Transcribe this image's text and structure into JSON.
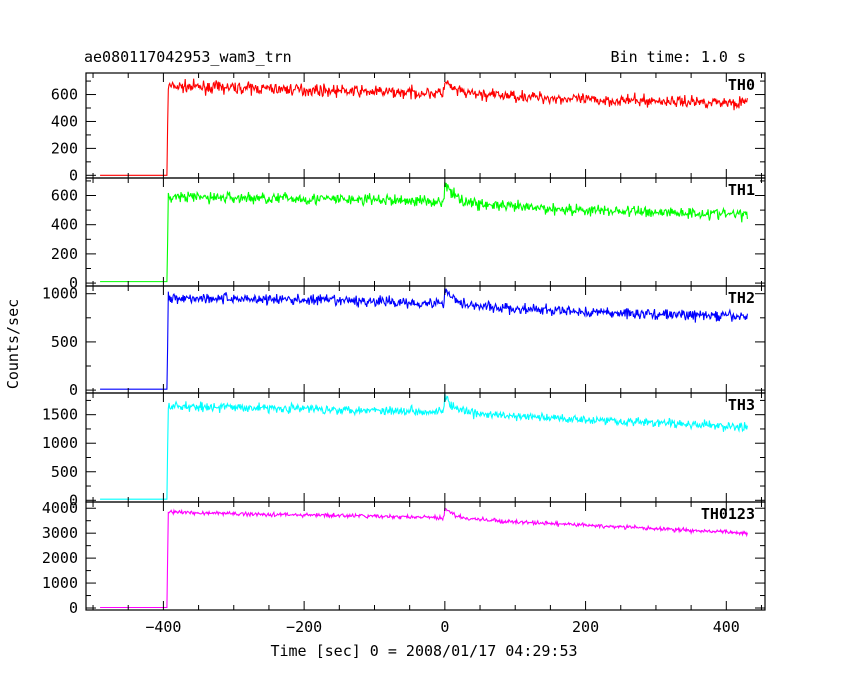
{
  "header": {
    "title": "ae080117042953_wam3_trn",
    "bin_time": "Bin time: 1.0 s"
  },
  "axes": {
    "ylabel": "Counts/sec",
    "xlabel": "Time [sec] 0 = 2008/01/17 04:29:53",
    "x_ticks": [
      "−400",
      "−200",
      "0",
      "200",
      "400"
    ]
  },
  "chart_data": {
    "type": "line",
    "title": "ae080117042953_wam3_trn",
    "xlabel": "Time [sec] 0 = 2008/01/17 04:29:53",
    "ylabel": "Counts/sec",
    "xlim": [
      -510,
      455
    ],
    "x_start": -490,
    "x_step": 1,
    "x_end": 430,
    "onset_time": -394,
    "burst_time": 0,
    "grid": false,
    "panels": [
      {
        "name": "TH0",
        "color": "#ff0000",
        "ylim": [
          -20,
          760
        ],
        "yticks": [
          0,
          200,
          400,
          600
        ],
        "ytick_labels": [
          "0",
          "200",
          "400",
          "600"
        ],
        "background": 0,
        "pre_onset_peak": 370,
        "trend": [
          [
            -394,
            660
          ],
          [
            -300,
            650
          ],
          [
            -100,
            620
          ],
          [
            -10,
            610
          ],
          [
            100,
            590
          ],
          [
            200,
            560
          ],
          [
            430,
            540
          ]
        ],
        "noise": 30,
        "burst_peak": 700,
        "burst_decay": 12
      },
      {
        "name": "TH1",
        "color": "#00ff00",
        "ylim": [
          -20,
          720
        ],
        "yticks": [
          0,
          200,
          400,
          600
        ],
        "ytick_labels": [
          "0",
          "200",
          "400",
          "600"
        ],
        "background": 10,
        "pre_onset_peak": 280,
        "trend": [
          [
            -394,
            590
          ],
          [
            -300,
            585
          ],
          [
            -100,
            570
          ],
          [
            -10,
            560
          ],
          [
            100,
            520
          ],
          [
            200,
            500
          ],
          [
            430,
            470
          ]
        ],
        "noise": 28,
        "burst_peak": 680,
        "burst_decay": 14
      },
      {
        "name": "TH2",
        "color": "#0000ff",
        "ylim": [
          -30,
          1080
        ],
        "yticks": [
          0,
          500,
          1000
        ],
        "ytick_labels": [
          "0",
          "500",
          "1000"
        ],
        "background": 10,
        "pre_onset_peak": 450,
        "trend": [
          [
            -394,
            960
          ],
          [
            -300,
            950
          ],
          [
            -100,
            920
          ],
          [
            -10,
            900
          ],
          [
            100,
            840
          ],
          [
            200,
            810
          ],
          [
            430,
            760
          ]
        ],
        "noise": 40,
        "burst_peak": 1050,
        "burst_decay": 14
      },
      {
        "name": "TH3",
        "color": "#00ffff",
        "ylim": [
          -30,
          1880
        ],
        "yticks": [
          0,
          500,
          1000,
          1500
        ],
        "ytick_labels": [
          "0",
          "500",
          "1000",
          "1500"
        ],
        "background": 20,
        "pre_onset_peak": 900,
        "trend": [
          [
            -394,
            1650
          ],
          [
            -300,
            1630
          ],
          [
            -100,
            1580
          ],
          [
            -10,
            1560
          ],
          [
            100,
            1470
          ],
          [
            200,
            1420
          ],
          [
            430,
            1280
          ]
        ],
        "noise": 55,
        "burst_peak": 1860,
        "burst_decay": 10
      },
      {
        "name": "TH0123",
        "color": "#ff00ff",
        "ylim": [
          -80,
          4250
        ],
        "yticks": [
          0,
          1000,
          2000,
          3000,
          4000
        ],
        "ytick_labels": [
          "0",
          "1000",
          "2000",
          "3000",
          "4000"
        ],
        "background": 20,
        "pre_onset_peak": 2000,
        "trend": [
          [
            -394,
            3850
          ],
          [
            -300,
            3780
          ],
          [
            -100,
            3680
          ],
          [
            -10,
            3620
          ],
          [
            100,
            3450
          ],
          [
            200,
            3320
          ],
          [
            430,
            3000
          ]
        ],
        "noise": 55,
        "burst_peak": 4000,
        "burst_decay": 14
      }
    ]
  }
}
